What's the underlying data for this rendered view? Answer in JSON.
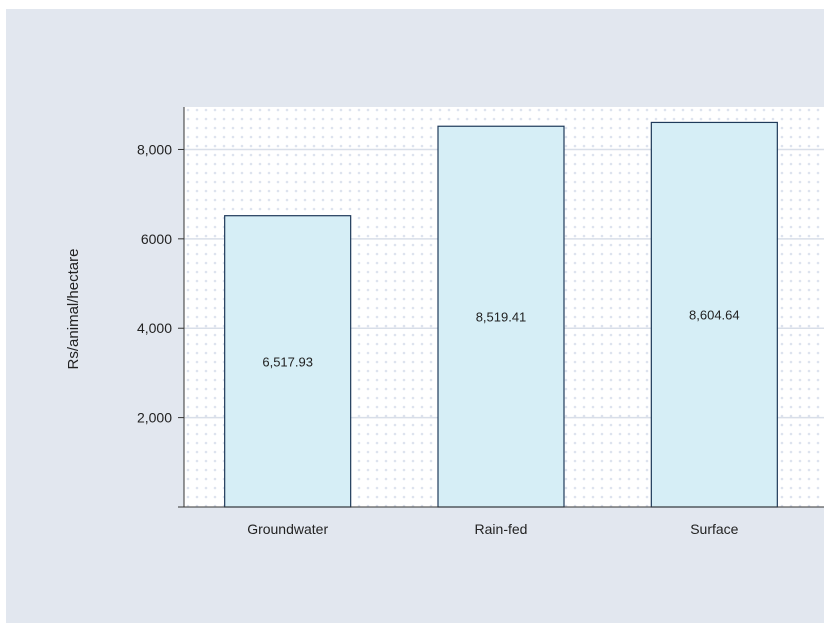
{
  "colors": {
    "frame_background": "#e2e7ef",
    "plot_background": "#ffffff",
    "dot_pattern": "#dde3ee",
    "gridline": "#d8dee8",
    "bar_fill": "#d6eef6",
    "bar_stroke": "#1f3a5a",
    "axis": "#333333"
  },
  "chart_data": {
    "type": "bar",
    "title": "",
    "xlabel": "",
    "ylabel": "Rs/animal/hectare",
    "categories": [
      "Groundwater",
      "Rain-fed",
      "Surface"
    ],
    "values": [
      6517.93,
      8519.41,
      8604.64
    ],
    "value_labels": [
      "6,517.93",
      "8,519.41",
      "8,604.64"
    ],
    "y_ticks": [
      2000,
      4000,
      6000,
      8000
    ],
    "y_tick_labels": [
      "2,000",
      "4,000",
      "6000",
      "8,000"
    ],
    "ylim": [
      0,
      8950
    ],
    "grid": true,
    "legend": "none"
  }
}
